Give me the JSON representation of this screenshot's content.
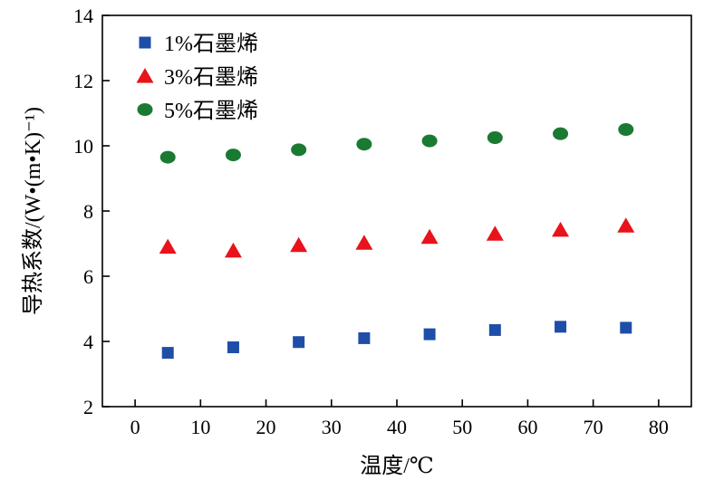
{
  "chart_data": {
    "type": "scatter",
    "x": [
      5,
      15,
      25,
      35,
      45,
      55,
      65,
      75
    ],
    "xlabel": "温度/℃",
    "ylabel": "导热系数/(W•(m•K)⁻¹)",
    "xlim": [
      -5,
      85
    ],
    "ylim": [
      2,
      14
    ],
    "xticks": [
      "0",
      "10",
      "20",
      "30",
      "40",
      "50",
      "60",
      "70",
      "80"
    ],
    "yticks": [
      "2",
      "4",
      "6",
      "8",
      "10",
      "12",
      "14"
    ],
    "grid": false,
    "legend_position": "top-left",
    "series": [
      {
        "name": "1%石墨烯",
        "marker": "square",
        "color": "#1f4ea8",
        "values": [
          3.65,
          3.82,
          3.98,
          4.1,
          4.22,
          4.35,
          4.45,
          4.42
        ]
      },
      {
        "name": "3%石墨烯",
        "marker": "triangle",
        "color": "#e8131b",
        "values": [
          6.9,
          6.78,
          6.95,
          7.02,
          7.2,
          7.3,
          7.42,
          7.55
        ]
      },
      {
        "name": "5%石墨烯",
        "marker": "circle",
        "color": "#1a7a32",
        "values": [
          9.65,
          9.72,
          9.88,
          10.05,
          10.15,
          10.25,
          10.37,
          10.5
        ]
      }
    ]
  }
}
